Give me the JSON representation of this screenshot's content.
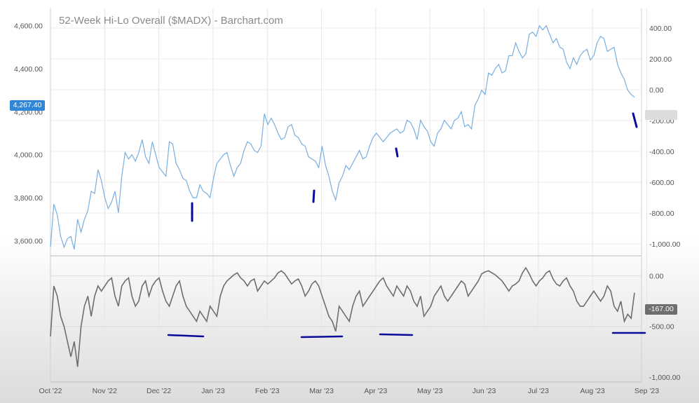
{
  "chart_data": [
    {
      "type": "line",
      "title": "52-Week Hi-Lo Overall ($MADX) - Barchart.com",
      "series": [
        {
          "values": [
            3570,
            3770,
            3720,
            3620,
            3570,
            3610,
            3620,
            3560,
            3700,
            3640,
            3700,
            3740,
            3830,
            3820,
            3930,
            3880,
            3800,
            3750,
            3780,
            3830,
            3730,
            3900,
            4010,
            3980,
            4000,
            3970,
            4010,
            4070,
            3990,
            3960,
            4060,
            4000,
            3940,
            3920,
            3900,
            4060,
            4050,
            3960,
            3930,
            3890,
            3880,
            3830,
            3800,
            3800,
            3860,
            3830,
            3820,
            3800,
            3890,
            3960,
            3980,
            4000,
            4010,
            3950,
            3900,
            3940,
            3960,
            4020,
            4060,
            4050,
            4020,
            4010,
            4040,
            4190,
            4140,
            4170,
            4140,
            4100,
            4070,
            4080,
            4130,
            4140,
            4090,
            4080,
            4050,
            4040,
            3990,
            3980,
            3970,
            3940,
            4040,
            3950,
            3900,
            3830,
            3790,
            3870,
            3900,
            3950,
            3930,
            3960,
            3990,
            4020,
            3980,
            3990,
            4040,
            4080,
            4100,
            4080,
            4060,
            4080,
            4100,
            4110,
            4120,
            4100,
            4110,
            4160,
            4150,
            4120,
            4070,
            4160,
            4130,
            4110,
            4060,
            4040,
            4100,
            4120,
            4160,
            4140,
            4120,
            4160,
            4170,
            4200,
            4130,
            4140,
            4120,
            4230,
            4260,
            4300,
            4280,
            4380,
            4370,
            4400,
            4420,
            4380,
            4390,
            4460,
            4460,
            4520,
            4480,
            4450,
            4470,
            4560,
            4570,
            4550,
            4600,
            4580,
            4600,
            4560,
            4520,
            4540,
            4500,
            4490,
            4430,
            4400,
            4450,
            4420,
            4460,
            4480,
            4490,
            4440,
            4460,
            4520,
            4550,
            4540,
            4480,
            4490,
            4500,
            4420,
            4380,
            4350,
            4300,
            4280,
            4267
          ]
        }
      ],
      "y_axis_left": {
        "ticks": [
          3600,
          3800,
          4000,
          4200,
          4400,
          4600
        ],
        "tick_labels": [
          "3,600.00",
          "3,800.00",
          "4,000.00",
          "4,200.00",
          "4,400.00",
          "4,600.00"
        ],
        "range": [
          3530,
          4680
        ]
      },
      "y_axis_right": {
        "ticks": [
          400,
          200,
          0,
          -200,
          -400,
          -600,
          -800,
          -1000
        ],
        "tick_labels": [
          "400.00",
          "200.00",
          "0.00",
          "-200.00",
          "-400.00",
          "-600.00",
          "-800.00",
          "-1,000.00"
        ]
      },
      "last_value_label": "4,267.40",
      "annotations": [
        "short vertical blue marks under local price lows"
      ]
    },
    {
      "type": "line",
      "series": [
        {
          "values": [
            -600,
            -100,
            -200,
            -400,
            -500,
            -650,
            -800,
            -650,
            -900,
            -500,
            -300,
            -200,
            -400,
            -200,
            -100,
            -150,
            -100,
            -50,
            -20,
            -200,
            -300,
            -100,
            -50,
            -20,
            -200,
            -300,
            -250,
            -100,
            -50,
            -200,
            -100,
            -50,
            -20,
            -150,
            -250,
            -300,
            -200,
            -100,
            -50,
            -200,
            -300,
            -350,
            -400,
            -450,
            -350,
            -400,
            -450,
            -300,
            -350,
            -400,
            -200,
            -100,
            -50,
            -20,
            10,
            30,
            -20,
            -50,
            -100,
            -50,
            -30,
            -150,
            -100,
            -50,
            -80,
            -50,
            -20,
            30,
            50,
            20,
            -30,
            -80,
            -50,
            -30,
            -100,
            -200,
            -150,
            -80,
            -50,
            -100,
            -200,
            -300,
            -400,
            -450,
            -550,
            -300,
            -350,
            -400,
            -450,
            -300,
            -200,
            -150,
            -300,
            -250,
            -200,
            -150,
            -100,
            -50,
            -20,
            -100,
            -150,
            -200,
            -100,
            -150,
            -200,
            -100,
            -150,
            -250,
            -300,
            -200,
            -400,
            -350,
            -300,
            -200,
            -150,
            -100,
            -200,
            -250,
            -200,
            -150,
            -100,
            -50,
            -80,
            -200,
            -150,
            -100,
            -50,
            20,
            40,
            50,
            30,
            10,
            -20,
            -50,
            -100,
            -150,
            -100,
            -80,
            -50,
            30,
            80,
            20,
            -50,
            -100,
            -50,
            -20,
            30,
            50,
            -30,
            -80,
            -100,
            -50,
            -20,
            -100,
            -150,
            -250,
            -300,
            -300,
            -250,
            -200,
            -150,
            -200,
            -250,
            -200,
            -100,
            -150,
            -300,
            -350,
            -250,
            -450,
            -380,
            -420,
            -167
          ]
        }
      ],
      "y_axis_right": {
        "ticks": [
          0,
          -500,
          -1000
        ],
        "tick_labels": [
          "0.00",
          "-500.00",
          "-1,000.00"
        ],
        "range": [
          -1050,
          150
        ]
      },
      "last_value_label": "-167.00",
      "annotations": [
        "horizontal blue support lines under oscillator lows"
      ]
    }
  ],
  "x_axis": {
    "tick_labels": [
      "Oct '22",
      "Nov '22",
      "Dec '22",
      "Jan '23",
      "Feb '23",
      "Mar '23",
      "Apr '23",
      "May '23",
      "Jun '23",
      "Jul '23",
      "Aug '23",
      "Sep '23"
    ]
  },
  "colors": {
    "price_line": "#78aee0",
    "osc_line": "#6e6e6e",
    "annotation": "#0a0a9a",
    "price_tag": "#2f86d8",
    "osc_tag": "#6e6e6e"
  }
}
